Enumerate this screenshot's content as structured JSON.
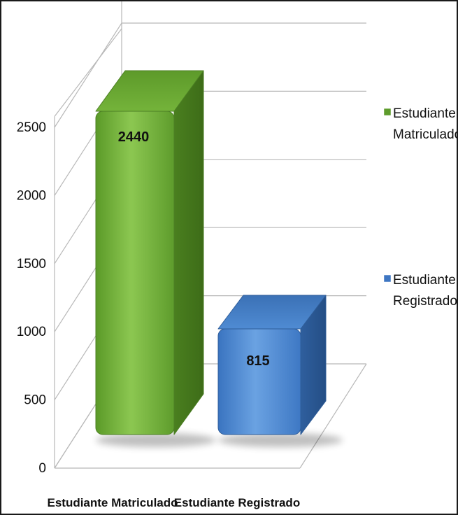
{
  "chart_data": {
    "type": "bar",
    "categories": [
      "Estudiante Matriculado",
      "Estudiante Registrado"
    ],
    "series": [
      {
        "name": "Estudiante Matriculado",
        "values": [
          2440,
          null
        ]
      },
      {
        "name": "Estudiante Registrado",
        "values": [
          null,
          815
        ]
      }
    ],
    "data_labels": [
      "2440",
      "815"
    ],
    "ylim": [
      0,
      2500
    ],
    "yticks": [
      0,
      500,
      1000,
      1500,
      2000,
      2500
    ],
    "grid": true,
    "style": "3d-rounded-bars",
    "legend": {
      "position": "right",
      "entries": [
        {
          "label_lines": [
            "Estudiante",
            "Matriculado"
          ],
          "color": "#5e9c2c"
        },
        {
          "label_lines": [
            "Estudiante",
            "Registrado"
          ],
          "color": "#3e76c2"
        }
      ]
    },
    "colors": {
      "green": "#6aa934",
      "blue": "#4a86d0"
    }
  }
}
